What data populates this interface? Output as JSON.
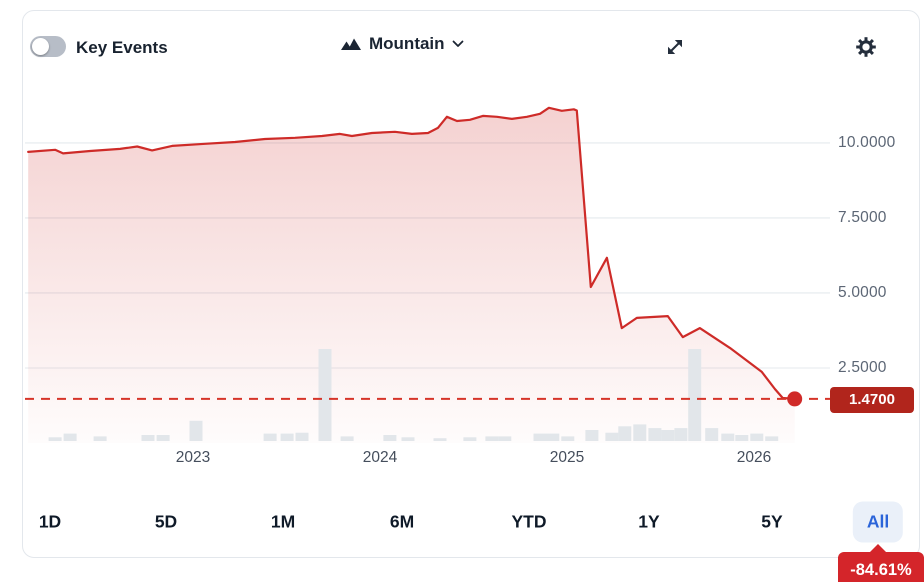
{
  "header": {
    "key_events_label": "Key Events",
    "key_events_state": "off",
    "chart_type_label": "Mountain"
  },
  "y_axis": {
    "ticks": [
      "10.0000",
      "7.5000",
      "5.0000",
      "2.5000"
    ]
  },
  "x_axis": {
    "ticks": [
      "2023",
      "2024",
      "2025",
      "2026"
    ]
  },
  "price_badge": {
    "value": "1.4700"
  },
  "ranges": {
    "items": [
      {
        "label": "1D"
      },
      {
        "label": "5D"
      },
      {
        "label": "1M"
      },
      {
        "label": "6M"
      },
      {
        "label": "YTD"
      },
      {
        "label": "1Y"
      },
      {
        "label": "5Y"
      },
      {
        "label": "All"
      }
    ],
    "selected": "All"
  },
  "tooltip": {
    "change": "-84.61%"
  },
  "colors": {
    "line_red": "#ce2b28",
    "fill_red": "#ce2b28",
    "badge_red": "#b1251c",
    "tooltip_red": "#d4252a",
    "volume_gray": "#e2e6ea",
    "grid_gray": "#e9edf1",
    "selected_blue": "#2b64d9"
  },
  "chart_data": {
    "type": "area",
    "title": "",
    "xlabel": "",
    "ylabel": "",
    "legend": false,
    "grid": true,
    "xlim": [
      2022.117,
      2026.365
    ],
    "ylim": [
      0,
      11.43
    ],
    "y_gridlines": [
      2.5,
      5.0,
      7.5,
      10.0
    ],
    "x_ticks_years": [
      2023,
      2024,
      2025,
      2026
    ],
    "last_price": 1.47,
    "change_pct": -84.61,
    "series": [
      {
        "name": "price",
        "points": [
          [
            2022.118,
            9.7
          ],
          [
            2022.262,
            9.77
          ],
          [
            2022.305,
            9.65
          ],
          [
            2022.449,
            9.73
          ],
          [
            2022.61,
            9.8
          ],
          [
            2022.701,
            9.88
          ],
          [
            2022.781,
            9.75
          ],
          [
            2022.888,
            9.9
          ],
          [
            2023.064,
            9.97
          ],
          [
            2023.225,
            10.03
          ],
          [
            2023.385,
            10.13
          ],
          [
            2023.546,
            10.17
          ],
          [
            2023.69,
            10.23
          ],
          [
            2023.786,
            10.3
          ],
          [
            2023.85,
            10.23
          ],
          [
            2023.957,
            10.33
          ],
          [
            2024.08,
            10.37
          ],
          [
            2024.171,
            10.3
          ],
          [
            2024.257,
            10.33
          ],
          [
            2024.31,
            10.5
          ],
          [
            2024.358,
            10.87
          ],
          [
            2024.412,
            10.73
          ],
          [
            2024.481,
            10.77
          ],
          [
            2024.551,
            10.9
          ],
          [
            2024.626,
            10.87
          ],
          [
            2024.706,
            10.8
          ],
          [
            2024.786,
            10.87
          ],
          [
            2024.856,
            10.97
          ],
          [
            2024.904,
            11.17
          ],
          [
            2024.973,
            11.07
          ],
          [
            2025.037,
            11.12
          ],
          [
            2025.053,
            11.08
          ],
          [
            2025.128,
            5.2
          ],
          [
            2025.214,
            6.17
          ],
          [
            2025.294,
            3.83
          ],
          [
            2025.374,
            4.17
          ],
          [
            2025.54,
            4.23
          ],
          [
            2025.62,
            3.53
          ],
          [
            2025.711,
            3.83
          ],
          [
            2025.872,
            3.17
          ],
          [
            2026.043,
            2.37
          ],
          [
            2026.113,
            1.8
          ],
          [
            2026.155,
            1.5
          ],
          [
            2026.219,
            1.47
          ]
        ]
      }
    ],
    "volume_relative": [
      [
        2022.262,
        0.04
      ],
      [
        2022.342,
        0.08
      ],
      [
        2022.503,
        0.05
      ],
      [
        2022.759,
        0.065
      ],
      [
        2022.84,
        0.065
      ],
      [
        2023.016,
        0.22
      ],
      [
        2023.412,
        0.08
      ],
      [
        2023.503,
        0.08
      ],
      [
        2023.583,
        0.09
      ],
      [
        2023.706,
        1.0
      ],
      [
        2023.824,
        0.05
      ],
      [
        2024.053,
        0.065
      ],
      [
        2024.15,
        0.04
      ],
      [
        2024.321,
        0.03
      ],
      [
        2024.481,
        0.04
      ],
      [
        2024.599,
        0.05
      ],
      [
        2024.668,
        0.05
      ],
      [
        2024.856,
        0.08
      ],
      [
        2024.925,
        0.08
      ],
      [
        2025.005,
        0.05
      ],
      [
        2025.134,
        0.12
      ],
      [
        2025.241,
        0.09
      ],
      [
        2025.31,
        0.16
      ],
      [
        2025.39,
        0.18
      ],
      [
        2025.471,
        0.14
      ],
      [
        2025.54,
        0.12
      ],
      [
        2025.61,
        0.14
      ],
      [
        2025.684,
        1.0
      ],
      [
        2025.775,
        0.14
      ],
      [
        2025.861,
        0.08
      ],
      [
        2025.936,
        0.065
      ],
      [
        2026.016,
        0.08
      ],
      [
        2026.096,
        0.05
      ]
    ]
  }
}
